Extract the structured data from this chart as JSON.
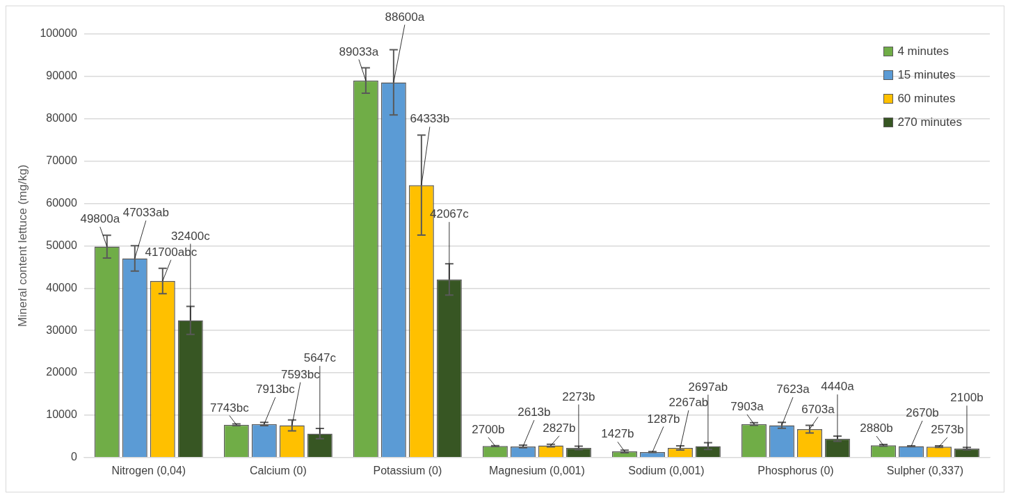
{
  "chart_data": {
    "type": "bar",
    "ylabel": "Mineral content lettuce (mg/kg)",
    "categories": [
      "Nitrogen (0,04)",
      "Calcium (0)",
      "Potassium (0)",
      "Magnesium (0,001)",
      "Sodium (0,001)",
      "Phosphorus (0)",
      "Sulpher (0,337)"
    ],
    "ylim": [
      0,
      100000
    ],
    "yticks": [
      0,
      10000,
      20000,
      30000,
      40000,
      50000,
      60000,
      70000,
      80000,
      90000,
      100000
    ],
    "grid": "y",
    "legend": "top right",
    "series": [
      {
        "name": "4 minutes",
        "color": "#70ad47",
        "values": [
          49800,
          7743,
          89033,
          2700,
          1427,
          7903,
          2880
        ],
        "errors": [
          2700,
          200,
          3000,
          100,
          300,
          300,
          200
        ],
        "value_labels": [
          "49800a",
          "7743bc",
          "89033a",
          "2700b",
          "1427b",
          "7903a",
          "2880b"
        ]
      },
      {
        "name": "15 minutes",
        "color": "#5b9bd5",
        "values": [
          47033,
          7913,
          88600,
          2613,
          1287,
          7623,
          2670
        ],
        "errors": [
          3000,
          400,
          7700,
          300,
          100,
          700,
          100
        ],
        "value_labels": [
          "47033ab",
          "7913bc",
          "88600a",
          "2613b",
          "1287b",
          "7623a",
          "2670b"
        ]
      },
      {
        "name": "60 minutes",
        "color": "#ffc000",
        "values": [
          41700,
          7593,
          64333,
          2827,
          2267,
          6703,
          2573
        ],
        "errors": [
          3000,
          1300,
          11800,
          300,
          500,
          900,
          200
        ],
        "value_labels": [
          "41700abc",
          "7593bc",
          "64333b",
          "2827b",
          "2267ab",
          "6703a",
          "2573b"
        ]
      },
      {
        "name": "270 minutes",
        "color": "#375623",
        "values": [
          32400,
          5647,
          42067,
          2273,
          2697,
          4440,
          2100
        ],
        "errors": [
          3300,
          1200,
          3700,
          400,
          800,
          600,
          300
        ],
        "value_labels": [
          "32400c",
          "5647c",
          "42067c",
          "2273b",
          "2697ab",
          "4440a",
          "2100b"
        ]
      }
    ]
  }
}
